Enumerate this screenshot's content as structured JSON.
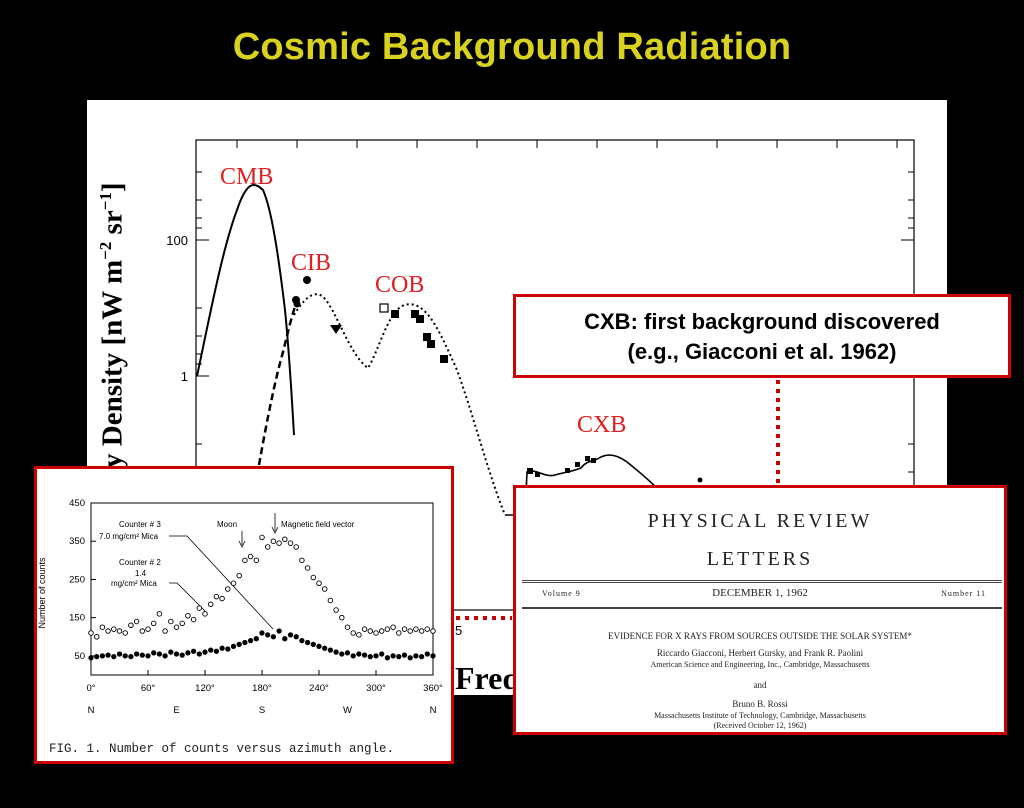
{
  "slide": {
    "title": "Cosmic Background Radiation"
  },
  "main_plot": {
    "ylabel_visible": "y Density [nW m",
    "ylabel_exp1": "−2",
    "ylabel_mid": " sr",
    "ylabel_exp2": "−1",
    "ylabel_end": "]",
    "xlabel_visible": "Freq",
    "y_ticks": [
      "100",
      "1"
    ],
    "x_tick_fragment": "5",
    "labels": {
      "cmb": "CMB",
      "cib": "CIB",
      "cob": "COB",
      "cxb": "CXB"
    },
    "label_color": "#e02020"
  },
  "callout": {
    "line1": "CXB: first background discovered",
    "line2": "(e.g., Giacconi et al. 1962)",
    "border_color": "#cc0000"
  },
  "counts_figure": {
    "chart_data": {
      "type": "scatter",
      "ylabel": "Number of counts",
      "ylim": [
        0,
        450
      ],
      "y_ticks": [
        "450",
        "350",
        "250",
        "150",
        "50"
      ],
      "x_ticks": [
        "0°",
        "60°",
        "120°",
        "180°",
        "240°",
        "300°",
        "360°"
      ],
      "compass": [
        "N",
        "E",
        "S",
        "W",
        "N"
      ],
      "annotations": {
        "counter3_a": "Counter # 3",
        "counter3_b": "7.0 mg/cm² Mica",
        "counter2_a": "Counter # 2",
        "counter2_b": "1.4",
        "counter2_c": "mg/cm² Mica",
        "moon": "Moon",
        "magnetic": "Magnetic field vector"
      },
      "series": [
        {
          "name": "Counter # 3",
          "marker": "open-circle",
          "x": [
            0,
            6,
            12,
            18,
            24,
            30,
            36,
            42,
            48,
            54,
            60,
            66,
            72,
            78,
            84,
            90,
            96,
            102,
            108,
            114,
            120,
            126,
            132,
            138,
            144,
            150,
            156,
            162,
            168,
            174,
            180,
            186,
            192,
            198,
            204,
            210,
            216,
            222,
            228,
            234,
            240,
            246,
            252,
            258,
            264,
            270,
            276,
            282,
            288,
            294,
            300,
            306,
            312,
            318,
            324,
            330,
            336,
            342,
            348,
            354,
            360
          ],
          "y": [
            110,
            100,
            125,
            115,
            120,
            115,
            110,
            130,
            140,
            115,
            120,
            135,
            160,
            115,
            140,
            125,
            135,
            155,
            145,
            175,
            160,
            185,
            205,
            200,
            225,
            240,
            260,
            300,
            310,
            300,
            360,
            335,
            350,
            345,
            355,
            345,
            335,
            300,
            280,
            255,
            240,
            225,
            195,
            170,
            150,
            125,
            110,
            105,
            120,
            115,
            110,
            115,
            120,
            125,
            110,
            120,
            115,
            120,
            115,
            120,
            115
          ]
        },
        {
          "name": "Counter # 2",
          "marker": "filled-circle",
          "x": [
            0,
            6,
            12,
            18,
            24,
            30,
            36,
            42,
            48,
            54,
            60,
            66,
            72,
            78,
            84,
            90,
            96,
            102,
            108,
            114,
            120,
            126,
            132,
            138,
            144,
            150,
            156,
            162,
            168,
            174,
            180,
            186,
            192,
            198,
            204,
            210,
            216,
            222,
            228,
            234,
            240,
            246,
            252,
            258,
            264,
            270,
            276,
            282,
            288,
            294,
            300,
            306,
            312,
            318,
            324,
            330,
            336,
            342,
            348,
            354,
            360
          ],
          "y": [
            45,
            48,
            50,
            52,
            48,
            55,
            50,
            48,
            55,
            52,
            50,
            58,
            55,
            50,
            60,
            55,
            52,
            58,
            62,
            55,
            60,
            65,
            62,
            70,
            68,
            75,
            80,
            85,
            90,
            95,
            110,
            105,
            100,
            115,
            95,
            105,
            100,
            90,
            85,
            80,
            75,
            70,
            65,
            60,
            55,
            58,
            50,
            55,
            52,
            48,
            50,
            55,
            45,
            50,
            48,
            52,
            45,
            50,
            48,
            55,
            50
          ]
        }
      ]
    },
    "caption": "FIG. 1.  Number of counts versus azimuth angle."
  },
  "prl": {
    "journal_line1": "PHYSICAL  REVIEW",
    "journal_line2": "LETTERS",
    "volume": "Volume 9",
    "date": "DECEMBER 1, 1962",
    "number": "Number 11",
    "headline": "EVIDENCE FOR X RAYS FROM SOURCES OUTSIDE THE SOLAR SYSTEM*",
    "authors": "Riccardo Giacconi, Herbert Gursky, and Frank R. Paolini",
    "affiliation1": "American Science and Engineering, Inc., Cambridge, Massachusetts",
    "and": "and",
    "author2": "Bruno B. Rossi",
    "affiliation2": "Massachusetts Institute of Technology, Cambridge, Massachusetts",
    "received": "(Received October 12, 1962)"
  }
}
